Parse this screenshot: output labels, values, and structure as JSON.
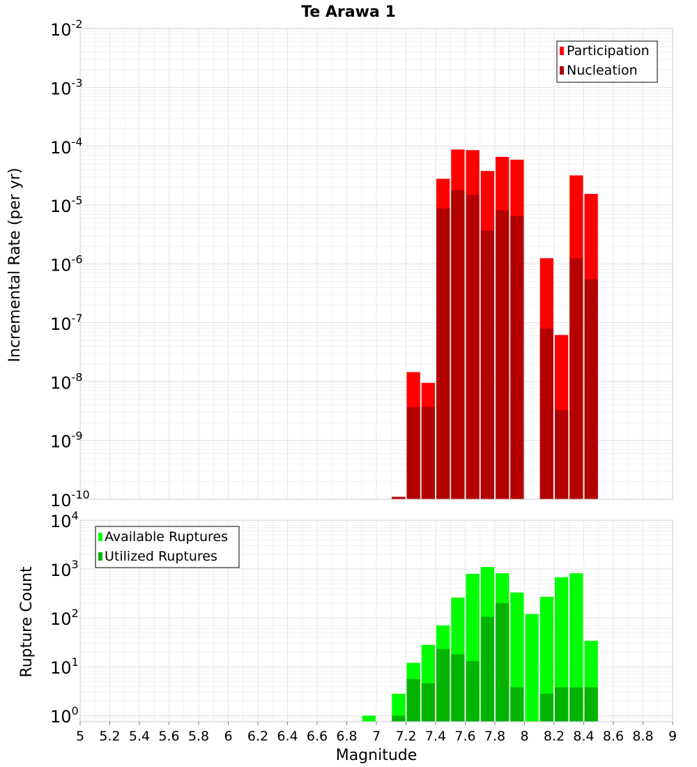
{
  "chart_data": [
    {
      "type": "bar",
      "title": "Te Arawa 1",
      "ylabel": "Incremental Rate (per yr)",
      "xlabel": "",
      "xlim": [
        5,
        9
      ],
      "ylim": [
        1e-10,
        0.01
      ],
      "yscale": "log",
      "ytick_labels": [
        {
          "base": "10",
          "exp": "-10"
        },
        {
          "base": "10",
          "exp": "-9"
        },
        {
          "base": "10",
          "exp": "-8"
        },
        {
          "base": "10",
          "exp": "-7"
        },
        {
          "base": "10",
          "exp": "-6"
        },
        {
          "base": "10",
          "exp": "-5"
        },
        {
          "base": "10",
          "exp": "-4"
        },
        {
          "base": "10",
          "exp": "-3"
        },
        {
          "base": "10",
          "exp": "-2"
        }
      ],
      "grid": true,
      "legend_position": "top-right",
      "bar_width": 0.1,
      "x": [
        7.15,
        7.25,
        7.35,
        7.45,
        7.55,
        7.65,
        7.75,
        7.85,
        7.95,
        8.05,
        8.15,
        8.25,
        8.35,
        8.45
      ],
      "series": [
        {
          "name": "Participation",
          "color": "#ff0000",
          "values": [
            1.1e-10,
            1.45e-08,
            9.5e-09,
            2.8e-05,
            8.8e-05,
            8.6e-05,
            3.8e-05,
            6.6e-05,
            5.9e-05,
            null,
            1.25e-06,
            6.2e-08,
            3.2e-05,
            1.55e-05
          ]
        },
        {
          "name": "Nucleation",
          "color": "#b30000",
          "values": [
            1.1e-10,
            3.7e-09,
            3.7e-09,
            8.8e-06,
            1.8e-05,
            1.5e-05,
            3.7e-06,
            8.2e-06,
            6.5e-06,
            null,
            8e-08,
            3.3e-09,
            1.25e-06,
            5.5e-07
          ]
        }
      ]
    },
    {
      "type": "bar",
      "title": "",
      "ylabel": "Rupture Count",
      "xlabel": "Magnitude",
      "xlim": [
        5,
        9
      ],
      "ylim": [
        0.75,
        10000
      ],
      "yscale": "log",
      "xtick_labels": [
        "5",
        "5.2",
        "5.4",
        "5.6",
        "5.8",
        "6",
        "6.2",
        "6.4",
        "6.6",
        "6.8",
        "7",
        "7.2",
        "7.4",
        "7.6",
        "7.8",
        "8",
        "8.2",
        "8.4",
        "8.6",
        "8.8",
        "9"
      ],
      "ytick_labels": [
        {
          "base": "10",
          "exp": "0",
          "value": 1
        },
        {
          "base": "10",
          "exp": "1",
          "value": 10
        },
        {
          "base": "10",
          "exp": "2",
          "value": 100
        },
        {
          "base": "10",
          "exp": "3",
          "value": 1000
        },
        {
          "base": "10",
          "exp": "4",
          "value": 10000
        }
      ],
      "grid": true,
      "legend_position": "top-left",
      "bar_width": 0.1,
      "x": [
        6.95,
        7.15,
        7.25,
        7.35,
        7.45,
        7.55,
        7.65,
        7.75,
        7.85,
        7.95,
        8.05,
        8.15,
        8.25,
        8.35,
        8.45
      ],
      "series": [
        {
          "name": "Available Ruptures",
          "color": "#00ff00",
          "values": [
            1,
            2.8,
            12,
            28,
            70,
            260,
            800,
            1100,
            820,
            330,
            120,
            270,
            680,
            820,
            34
          ]
        },
        {
          "name": "Utilized Ruptures",
          "color": "#00b400",
          "values": [
            null,
            1,
            5.6,
            4.6,
            23,
            18,
            13,
            105,
            200,
            3.8,
            null,
            2.8,
            3.8,
            3.8,
            3.8
          ]
        }
      ]
    }
  ]
}
